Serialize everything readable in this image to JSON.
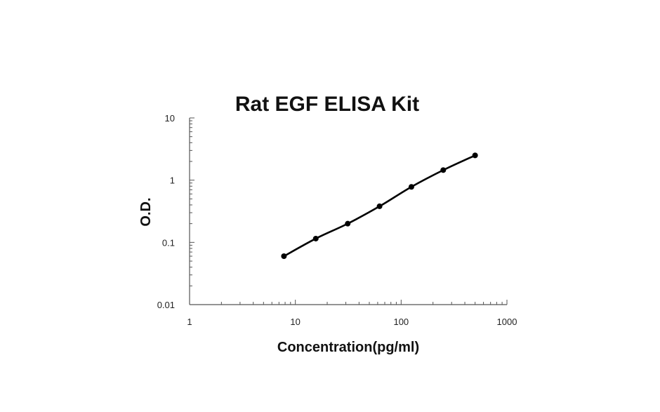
{
  "chart_data": {
    "type": "line",
    "title": "Rat EGF ELISA Kit",
    "xlabel": "Concentration(pg/ml)",
    "ylabel": "O.D.",
    "x_scale": "log",
    "y_scale": "log",
    "xlim": [
      1,
      1000
    ],
    "ylim": [
      0.01,
      10
    ],
    "x_ticks": [
      "1",
      "10",
      "100",
      "1000"
    ],
    "y_ticks": [
      "0.01",
      "0.1",
      "1",
      "10"
    ],
    "grid": false,
    "legend": "none",
    "series": [
      {
        "x": [
          7.8,
          15.6,
          31.25,
          62.5,
          125,
          250,
          500
        ],
        "y": [
          0.06,
          0.115,
          0.2,
          0.38,
          0.78,
          1.45,
          2.5
        ]
      }
    ],
    "colors": {
      "line": "#000000",
      "axis": "#555555"
    }
  }
}
